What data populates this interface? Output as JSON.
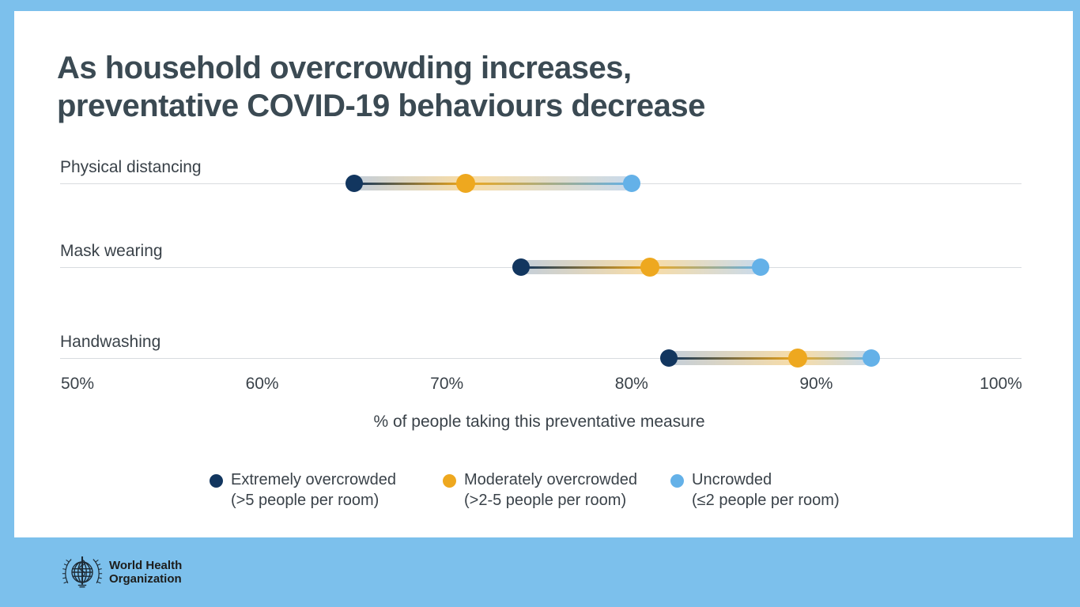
{
  "page": {
    "background_color": "#7cc0ec",
    "card_color": "#ffffff",
    "title_color": "#3b4a53",
    "text_color": "#3a4249",
    "row_line_color": "#d8dcdf"
  },
  "title": {
    "line1": "As household overcrowding increases,",
    "line2": "preventative COVID-19 behaviours decrease"
  },
  "chart_data": {
    "type": "dumbbell-dot",
    "categories": [
      "Physical distancing",
      "Mask wearing",
      "Handwashing"
    ],
    "series": [
      {
        "name": "Extremely overcrowded (>5 people per room)",
        "color": "#12365f",
        "values": [
          65,
          74,
          82
        ]
      },
      {
        "name": "Moderately overcrowded (>2-5 people per room)",
        "color": "#eea81f",
        "values": [
          71,
          81,
          89
        ]
      },
      {
        "name": "Uncrowded (≤2 people per room)",
        "color": "#64b1e8",
        "values": [
          80,
          87,
          93
        ]
      }
    ],
    "x_ticks": [
      50,
      60,
      70,
      80,
      90,
      100
    ],
    "x_tick_labels": [
      "50%",
      "60%",
      "70%",
      "80%",
      "90%",
      "100%"
    ],
    "xlim": [
      50,
      100
    ],
    "xlabel": "% of people taking this preventative measure",
    "grid": "horizontal row baselines only",
    "legend_position": "bottom"
  },
  "axis": {
    "caption": "% of people taking this preventative measure"
  },
  "legend": {
    "items": [
      {
        "line1": "Extremely overcrowded",
        "line2": "(>5 people per room)",
        "color": "#12365f"
      },
      {
        "line1": "Moderately overcrowded",
        "line2": "(>2-5 people per room)",
        "color": "#eea81f"
      },
      {
        "line1": "Uncrowded",
        "line2": "(≤2 people per room)",
        "color": "#64b1e8"
      }
    ]
  },
  "footer": {
    "org_line1": "World Health",
    "org_line2": "Organization"
  }
}
